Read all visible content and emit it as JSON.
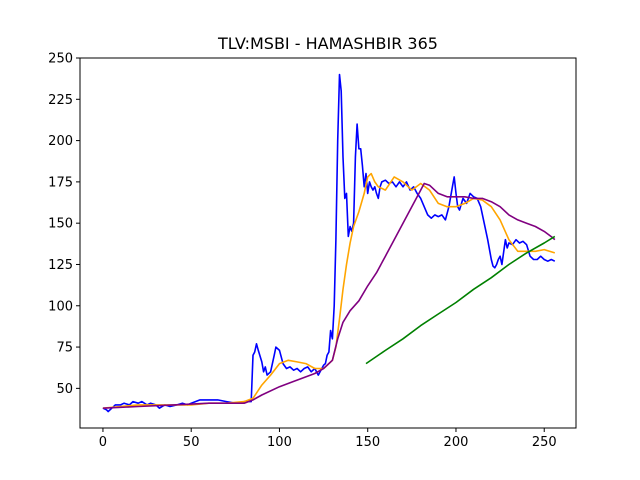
{
  "chart_data": {
    "type": "line",
    "title": "TLV:MSBI - HAMASHBIR 365",
    "xlabel": "",
    "ylabel": "",
    "xlim": [
      -13,
      268
    ],
    "ylim": [
      26,
      250
    ],
    "xticks": [
      0,
      50,
      100,
      150,
      200,
      250
    ],
    "yticks": [
      50,
      75,
      100,
      125,
      150,
      175,
      200,
      225,
      250
    ],
    "grid": false,
    "legend": "none",
    "series": [
      {
        "color": "#0000ff",
        "x": [
          0,
          2,
          3,
          5,
          7,
          10,
          12,
          15,
          17,
          20,
          22,
          25,
          27,
          30,
          32,
          35,
          38,
          42,
          45,
          48,
          50,
          55,
          60,
          65,
          70,
          75,
          80,
          82,
          84,
          85,
          86,
          87,
          88,
          90,
          91,
          92,
          93,
          95,
          97,
          98,
          100,
          102,
          104,
          106,
          108,
          110,
          112,
          114,
          116,
          118,
          120,
          122,
          124,
          125,
          126,
          127,
          128,
          129,
          130,
          131,
          132,
          133,
          134,
          135,
          136,
          137,
          138,
          139,
          140,
          141,
          142,
          143,
          144,
          145,
          146,
          147,
          148,
          149,
          150,
          151,
          152,
          153,
          154,
          155,
          156,
          157,
          158,
          160,
          162,
          164,
          166,
          168,
          170,
          172,
          174,
          176,
          178,
          180,
          182,
          184,
          186,
          188,
          190,
          192,
          194,
          196,
          198,
          199,
          200,
          201,
          202,
          204,
          206,
          208,
          210,
          212,
          214,
          216,
          218,
          220,
          221,
          222,
          223,
          224,
          225,
          226,
          228,
          229,
          230,
          232,
          234,
          236,
          238,
          240,
          242,
          244,
          246,
          248,
          250,
          252,
          254,
          256
        ],
        "y": [
          38,
          37,
          36,
          38,
          40,
          40,
          41,
          40,
          42,
          41,
          42,
          40,
          41,
          40,
          38,
          40,
          39,
          40,
          41,
          40,
          41,
          43,
          43,
          43,
          42,
          41,
          42,
          42,
          42,
          70,
          72,
          77,
          73,
          66,
          60,
          63,
          58,
          60,
          70,
          75,
          73,
          65,
          62,
          63,
          61,
          62,
          60,
          62,
          63,
          60,
          62,
          58,
          62,
          64,
          65,
          70,
          72,
          85,
          80,
          100,
          140,
          200,
          240,
          230,
          190,
          165,
          168,
          142,
          148,
          145,
          150,
          190,
          210,
          195,
          195,
          185,
          172,
          180,
          168,
          175,
          172,
          170,
          172,
          168,
          165,
          172,
          175,
          176,
          174,
          175,
          172,
          175,
          172,
          175,
          170,
          172,
          168,
          165,
          160,
          155,
          153,
          155,
          154,
          155,
          152,
          160,
          172,
          178,
          168,
          160,
          158,
          165,
          162,
          168,
          166,
          165,
          160,
          150,
          140,
          128,
          124,
          123,
          125,
          128,
          130,
          125,
          140,
          135,
          138,
          137,
          140,
          138,
          139,
          137,
          130,
          128,
          128,
          130,
          128,
          127,
          128,
          127
        ]
      },
      {
        "color": "#ffa500",
        "x": [
          0,
          10,
          20,
          30,
          40,
          50,
          60,
          70,
          80,
          85,
          90,
          95,
          100,
          105,
          110,
          115,
          120,
          125,
          130,
          132,
          134,
          136,
          138,
          140,
          142,
          145,
          148,
          150,
          152,
          154,
          156,
          160,
          165,
          170,
          175,
          180,
          185,
          190,
          195,
          200,
          205,
          210,
          215,
          220,
          225,
          230,
          235,
          240,
          245,
          250,
          256
        ],
        "y": [
          38,
          39,
          40,
          40,
          40,
          40,
          41,
          41,
          42,
          44,
          52,
          58,
          65,
          67,
          66,
          65,
          62,
          62,
          67,
          75,
          92,
          110,
          125,
          138,
          148,
          157,
          168,
          178,
          180,
          175,
          172,
          170,
          178,
          175,
          170,
          174,
          170,
          162,
          160,
          160,
          162,
          165,
          164,
          160,
          152,
          140,
          133,
          133,
          133,
          134,
          132
        ]
      },
      {
        "color": "#800080",
        "x": [
          0,
          20,
          40,
          60,
          80,
          85,
          90,
          100,
          110,
          120,
          125,
          130,
          133,
          136,
          140,
          145,
          150,
          155,
          160,
          165,
          170,
          175,
          180,
          182,
          185,
          190,
          195,
          200,
          205,
          210,
          215,
          220,
          225,
          230,
          235,
          240,
          245,
          250,
          255,
          256
        ],
        "y": [
          38,
          39,
          40,
          41,
          41,
          43,
          46,
          51,
          55,
          59,
          62,
          67,
          80,
          90,
          97,
          103,
          112,
          120,
          130,
          140,
          150,
          160,
          170,
          174,
          173,
          168,
          166,
          166,
          166,
          165,
          165,
          163,
          160,
          155,
          152,
          150,
          148,
          145,
          141,
          140
        ]
      },
      {
        "color": "#008000",
        "x": [
          149,
          160,
          170,
          180,
          190,
          200,
          210,
          220,
          230,
          240,
          250,
          256
        ],
        "y": [
          65,
          73,
          80,
          88,
          95,
          102,
          110,
          117,
          125,
          132,
          138,
          142
        ]
      }
    ]
  }
}
